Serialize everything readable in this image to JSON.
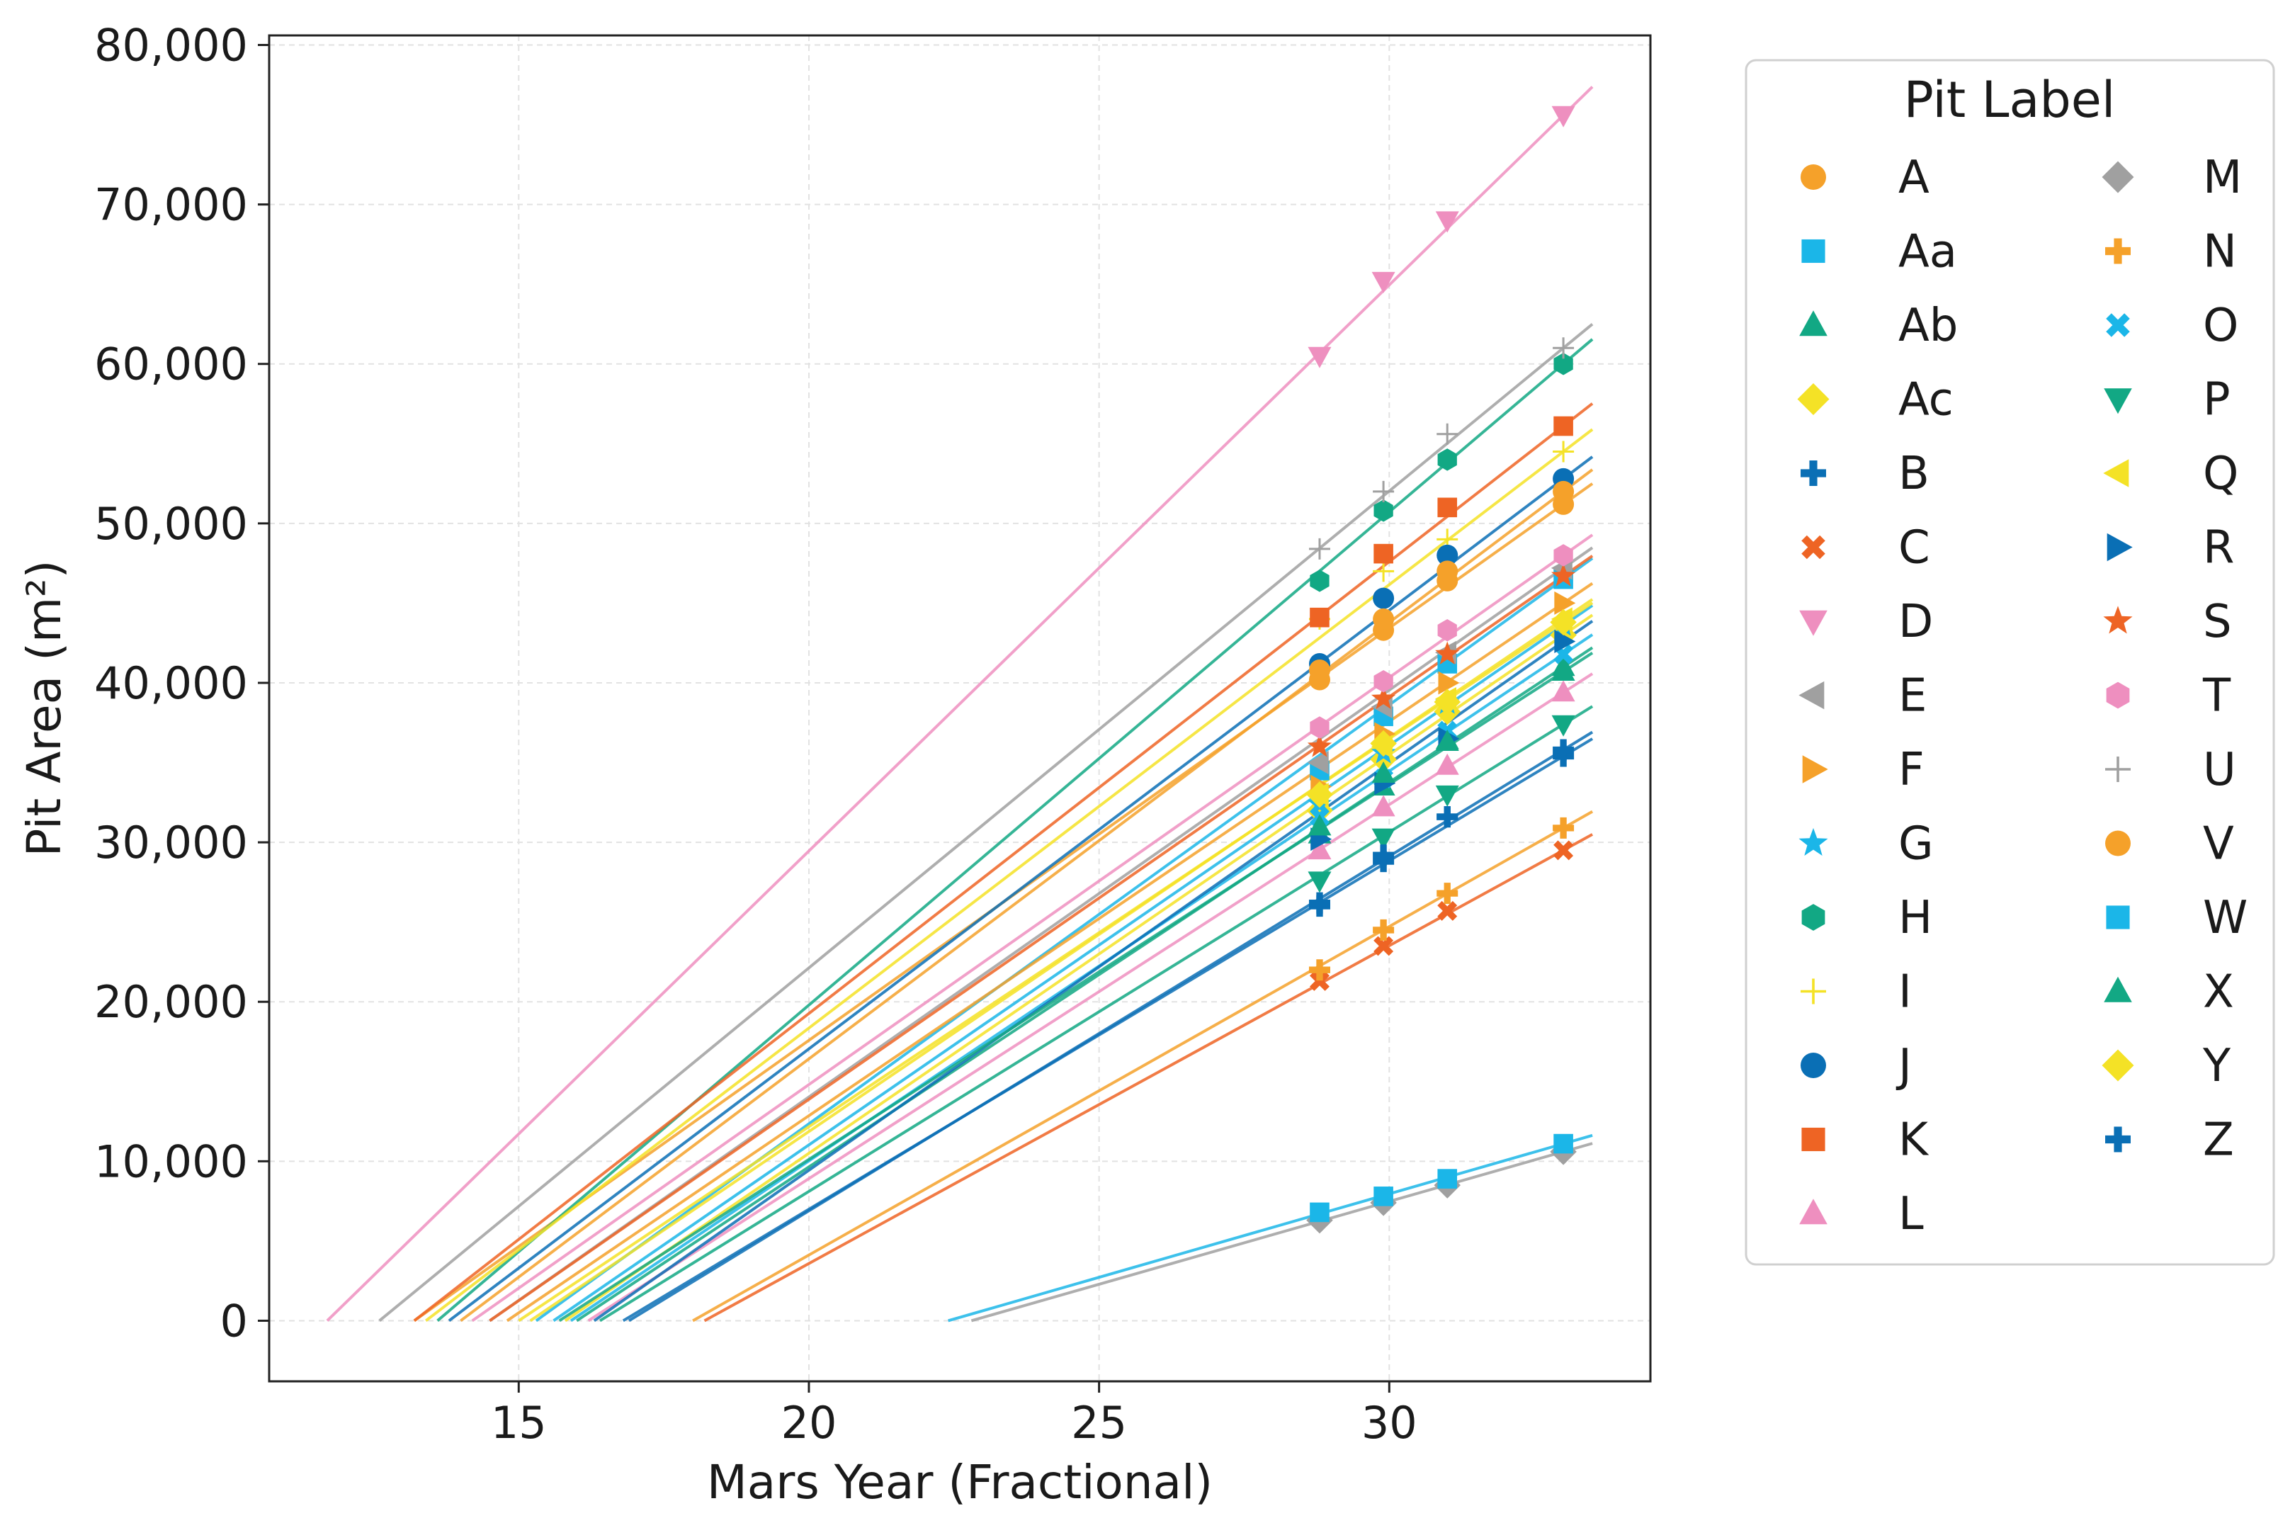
{
  "chart_data": {
    "type": "scatter",
    "xlabel": "Mars Year (Fractional)",
    "ylabel": "Pit Area (m²)",
    "xlim": [
      10.7,
      34.5
    ],
    "ylim": [
      -3800,
      80600
    ],
    "xticks": [
      15,
      20,
      25,
      30
    ],
    "yticks": [
      0,
      10000,
      20000,
      30000,
      40000,
      50000,
      60000,
      70000,
      80000
    ],
    "xtick_labels": [
      "15",
      "20",
      "25",
      "30"
    ],
    "ytick_labels": [
      "0",
      "10,000",
      "20,000",
      "30,000",
      "40,000",
      "50,000",
      "60,000",
      "70,000",
      "80,000"
    ],
    "grid": true,
    "legend": {
      "title": "Pit Label",
      "placement": "outside-right",
      "columns": 2
    },
    "observation_years": [
      28.8,
      29.9,
      31.0,
      33.0
    ],
    "fit_line_end_year": 33.5,
    "series": [
      {
        "name": "A",
        "color": "#f5a12a",
        "marker": "circle",
        "values": [
          40200,
          43300,
          46400,
          51200
        ],
        "fit_x_intercept": 13.2
      },
      {
        "name": "Aa",
        "color": "#1bb6e8",
        "marker": "square",
        "values": [
          34500,
          37900,
          41200,
          46500
        ],
        "fit_x_intercept": 15.3
      },
      {
        "name": "Ab",
        "color": "#12a884",
        "marker": "triangle-up",
        "values": [
          30500,
          33500,
          36400,
          41000
        ],
        "fit_x_intercept": 16.0
      },
      {
        "name": "Ac",
        "color": "#f4e226",
        "marker": "diamond",
        "values": [
          32000,
          35200,
          38200,
          43000
        ],
        "fit_x_intercept": 15.8
      },
      {
        "name": "B",
        "color": "#0a6fb5",
        "marker": "plus-thick",
        "values": [
          26000,
          28800,
          31600,
          35400
        ],
        "fit_x_intercept": 16.8
      },
      {
        "name": "C",
        "color": "#ee6424",
        "marker": "x-thick",
        "values": [
          21300,
          23500,
          25700,
          29500
        ],
        "fit_x_intercept": 18.2
      },
      {
        "name": "D",
        "color": "#ee8fbf",
        "marker": "triangle-down",
        "values": [
          60500,
          65200,
          69000,
          75600
        ],
        "fit_x_intercept": 11.7
      },
      {
        "name": "E",
        "color": "#a0a0a0",
        "marker": "triangle-left",
        "values": [
          35000,
          38500,
          41900,
          47200
        ],
        "fit_x_intercept": 14.5
      },
      {
        "name": "F",
        "color": "#f5a12a",
        "marker": "triangle-right",
        "values": [
          33500,
          36800,
          40000,
          45000
        ],
        "fit_x_intercept": 14.8
      },
      {
        "name": "G",
        "color": "#1bb6e8",
        "marker": "star",
        "values": [
          32400,
          35600,
          38700,
          43600
        ],
        "fit_x_intercept": 15.6
      },
      {
        "name": "H",
        "color": "#12a884",
        "marker": "hexagon",
        "values": [
          46400,
          50800,
          54000,
          60000
        ],
        "fit_x_intercept": 13.6
      },
      {
        "name": "I",
        "color": "#f4e226",
        "marker": "plus",
        "values": [
          44000,
          47000,
          49000,
          54500
        ],
        "fit_x_intercept": 13.4
      },
      {
        "name": "J",
        "color": "#0a6fb5",
        "marker": "circle",
        "values": [
          41200,
          45300,
          48000,
          52800
        ],
        "fit_x_intercept": 13.8
      },
      {
        "name": "K",
        "color": "#ee6424",
        "marker": "square",
        "values": [
          44100,
          48100,
          51000,
          56100
        ],
        "fit_x_intercept": 13.2
      },
      {
        "name": "L",
        "color": "#ee8fbf",
        "marker": "triangle-up",
        "values": [
          29500,
          32200,
          34800,
          39400
        ],
        "fit_x_intercept": 16.2
      },
      {
        "name": "M",
        "color": "#a0a0a0",
        "marker": "diamond",
        "values": [
          6300,
          7400,
          8500,
          10600
        ],
        "fit_x_intercept": 22.8
      },
      {
        "name": "N",
        "color": "#f5a12a",
        "marker": "plus-thick",
        "values": [
          22000,
          24500,
          26800,
          30900
        ],
        "fit_x_intercept": 18.0
      },
      {
        "name": "O",
        "color": "#1bb6e8",
        "marker": "x-thick",
        "values": [
          31600,
          34000,
          37000,
          41800
        ],
        "fit_x_intercept": 15.9
      },
      {
        "name": "P",
        "color": "#12a884",
        "marker": "triangle-down",
        "values": [
          27600,
          30300,
          33000,
          37400
        ],
        "fit_x_intercept": 16.4
      },
      {
        "name": "Q",
        "color": "#f4e226",
        "marker": "triangle-left",
        "values": [
          33000,
          36000,
          39000,
          44000
        ],
        "fit_x_intercept": 15.2
      },
      {
        "name": "R",
        "color": "#0a6fb5",
        "marker": "triangle-right",
        "values": [
          30200,
          33700,
          36500,
          42600
        ],
        "fit_x_intercept": 16.3
      },
      {
        "name": "S",
        "color": "#ee6424",
        "marker": "star",
        "values": [
          36000,
          39000,
          41800,
          46700
        ],
        "fit_x_intercept": 14.5
      },
      {
        "name": "T",
        "color": "#ee8fbf",
        "marker": "hexagon",
        "values": [
          37200,
          40100,
          43300,
          48000
        ],
        "fit_x_intercept": 14.2
      },
      {
        "name": "U",
        "color": "#a0a0a0",
        "marker": "plus",
        "values": [
          48400,
          52000,
          55600,
          61000
        ],
        "fit_x_intercept": 12.6
      },
      {
        "name": "V",
        "color": "#f5a12a",
        "marker": "circle",
        "values": [
          40800,
          44000,
          47000,
          52000
        ],
        "fit_x_intercept": 14.0
      },
      {
        "name": "W",
        "color": "#1bb6e8",
        "marker": "square",
        "values": [
          6800,
          7800,
          8900,
          11100
        ],
        "fit_x_intercept": 22.4
      },
      {
        "name": "X",
        "color": "#12a884",
        "marker": "triangle-up",
        "values": [
          31000,
          34300,
          36300,
          40700
        ],
        "fit_x_intercept": 15.7
      },
      {
        "name": "Y",
        "color": "#f4e226",
        "marker": "diamond",
        "values": [
          33000,
          36200,
          38800,
          43800
        ],
        "fit_x_intercept": 15.0
      },
      {
        "name": "Z",
        "color": "#0a6fb5",
        "marker": "plus-thick",
        "values": [
          26200,
          29200,
          31600,
          35800
        ],
        "fit_x_intercept": 16.9
      }
    ]
  }
}
